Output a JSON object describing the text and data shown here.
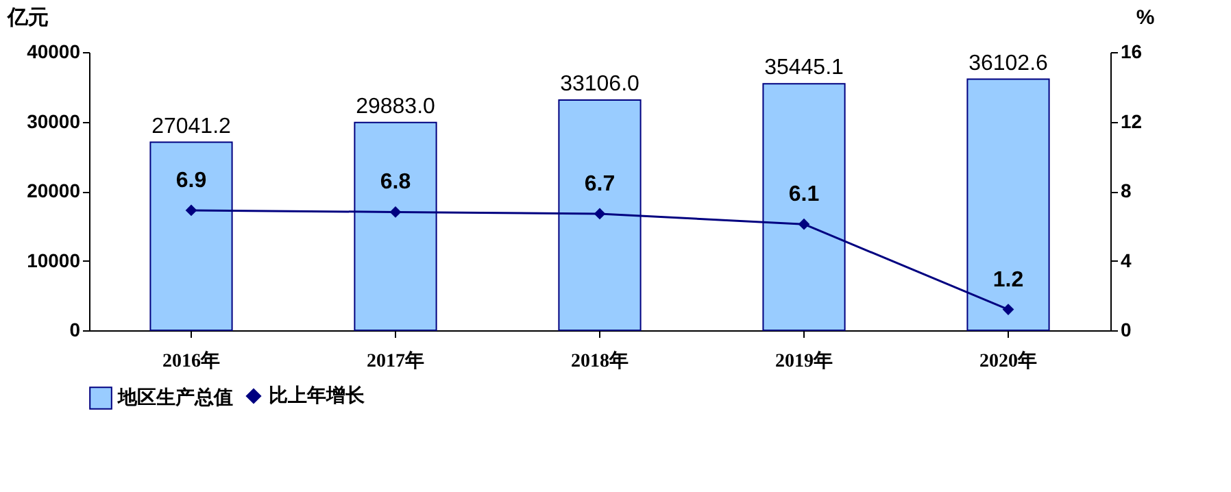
{
  "chart_data": {
    "type": "bar",
    "ylabel": "亿元",
    "y2label": "%",
    "categories": [
      "2016年",
      "2017年",
      "2018年",
      "2019年",
      "2020年"
    ],
    "series": [
      {
        "name": "地区生产总值",
        "color": "#99ccff",
        "values": [
          27041.2,
          29883.0,
          33106.0,
          35445.1,
          36102.6
        ],
        "value_labels": [
          "27041.2",
          "29883.0",
          "33106.0",
          "35445.1",
          "36102.6"
        ]
      },
      {
        "name": "比上年增长",
        "type": "line",
        "axis": "y2",
        "color": "#000080",
        "marker": "diamond",
        "values": [
          6.9,
          6.8,
          6.7,
          6.1,
          1.2
        ],
        "value_labels": [
          "6.9",
          "6.8",
          "6.7",
          "6.1",
          "1.2"
        ]
      }
    ],
    "ylim": [
      0,
      40000
    ],
    "yticks": [
      0,
      10000,
      20000,
      30000,
      40000
    ],
    "y2lim": [
      0,
      16
    ],
    "y2ticks": [
      0,
      4,
      8,
      12,
      16
    ],
    "grid": false,
    "legend": "bottom"
  }
}
